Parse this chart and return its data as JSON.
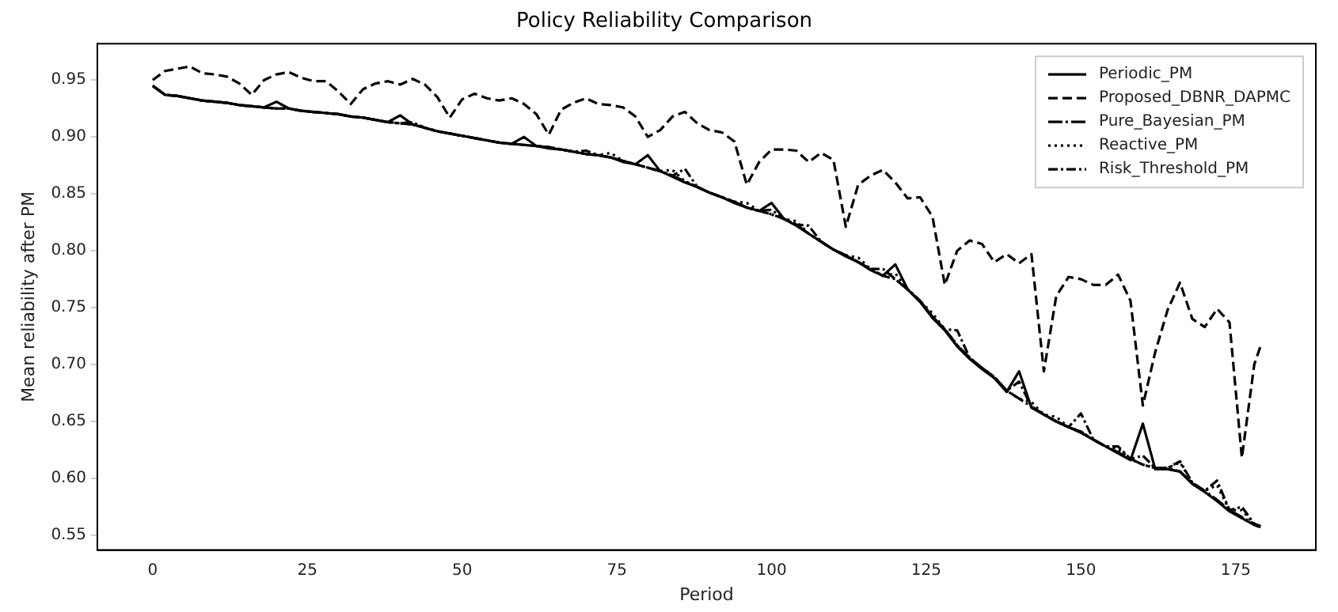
{
  "chart_data": {
    "type": "line",
    "title": "Policy Reliability Comparison",
    "xlabel": "Period",
    "ylabel": "Mean reliability after PM",
    "x": [
      0,
      2,
      4,
      6,
      8,
      10,
      12,
      14,
      16,
      18,
      20,
      22,
      24,
      26,
      28,
      30,
      32,
      34,
      36,
      38,
      40,
      42,
      44,
      46,
      48,
      50,
      52,
      54,
      56,
      58,
      60,
      62,
      64,
      66,
      68,
      70,
      72,
      74,
      76,
      78,
      80,
      82,
      84,
      86,
      88,
      90,
      92,
      94,
      96,
      98,
      100,
      102,
      104,
      106,
      108,
      110,
      112,
      114,
      116,
      118,
      120,
      122,
      124,
      126,
      128,
      130,
      132,
      134,
      136,
      138,
      140,
      142,
      144,
      146,
      148,
      150,
      152,
      154,
      156,
      158,
      160,
      162,
      164,
      166,
      168,
      170,
      172,
      174,
      176,
      178,
      179
    ],
    "series": [
      {
        "name": "Periodic_PM",
        "color": "#000000",
        "line_style": "solid",
        "values": [
          0.945,
          0.937,
          0.936,
          0.934,
          0.932,
          0.931,
          0.93,
          0.928,
          0.927,
          0.926,
          0.931,
          0.925,
          0.923,
          0.922,
          0.921,
          0.92,
          0.918,
          0.917,
          0.915,
          0.913,
          0.919,
          0.911,
          0.908,
          0.905,
          0.903,
          0.901,
          0.899,
          0.897,
          0.895,
          0.894,
          0.9,
          0.892,
          0.89,
          0.889,
          0.887,
          0.885,
          0.884,
          0.882,
          0.878,
          0.876,
          0.884,
          0.87,
          0.865,
          0.86,
          0.856,
          0.851,
          0.847,
          0.842,
          0.838,
          0.835,
          0.842,
          0.828,
          0.822,
          0.815,
          0.808,
          0.801,
          0.795,
          0.79,
          0.783,
          0.778,
          0.788,
          0.766,
          0.755,
          0.741,
          0.73,
          0.716,
          0.705,
          0.696,
          0.688,
          0.676,
          0.694,
          0.662,
          0.656,
          0.65,
          0.645,
          0.64,
          0.634,
          0.628,
          0.622,
          0.616,
          0.648,
          0.608,
          0.608,
          0.606,
          0.595,
          0.588,
          0.58,
          0.571,
          0.565,
          0.559,
          0.557
        ]
      },
      {
        "name": "Proposed_DBNR_DAPMC",
        "color": "#000000",
        "line_style": "dashed",
        "values": [
          0.95,
          0.958,
          0.96,
          0.962,
          0.956,
          0.955,
          0.953,
          0.947,
          0.937,
          0.95,
          0.955,
          0.957,
          0.952,
          0.949,
          0.949,
          0.94,
          0.929,
          0.942,
          0.947,
          0.949,
          0.946,
          0.951,
          0.946,
          0.935,
          0.917,
          0.933,
          0.938,
          0.934,
          0.932,
          0.934,
          0.929,
          0.92,
          0.902,
          0.924,
          0.93,
          0.934,
          0.929,
          0.928,
          0.926,
          0.918,
          0.9,
          0.906,
          0.918,
          0.922,
          0.912,
          0.906,
          0.904,
          0.896,
          0.858,
          0.878,
          0.889,
          0.889,
          0.888,
          0.878,
          0.886,
          0.88,
          0.821,
          0.858,
          0.866,
          0.871,
          0.86,
          0.846,
          0.847,
          0.83,
          0.77,
          0.8,
          0.809,
          0.806,
          0.79,
          0.797,
          0.789,
          0.797,
          0.694,
          0.76,
          0.777,
          0.775,
          0.77,
          0.77,
          0.779,
          0.756,
          0.664,
          0.711,
          0.748,
          0.772,
          0.74,
          0.733,
          0.749,
          0.737,
          0.618,
          0.7,
          0.716
        ]
      },
      {
        "name": "Pure_Bayesian_PM",
        "color": "#000000",
        "line_style": "longdashdot",
        "values": [
          0.945,
          0.937,
          0.936,
          0.934,
          0.932,
          0.931,
          0.93,
          0.928,
          0.927,
          0.926,
          0.925,
          0.925,
          0.923,
          0.922,
          0.921,
          0.92,
          0.918,
          0.917,
          0.915,
          0.913,
          0.912,
          0.911,
          0.908,
          0.905,
          0.903,
          0.901,
          0.899,
          0.897,
          0.895,
          0.894,
          0.893,
          0.892,
          0.891,
          0.889,
          0.887,
          0.885,
          0.884,
          0.882,
          0.879,
          0.876,
          0.873,
          0.87,
          0.866,
          0.861,
          0.856,
          0.851,
          0.847,
          0.843,
          0.838,
          0.835,
          0.832,
          0.828,
          0.823,
          0.815,
          0.808,
          0.801,
          0.796,
          0.79,
          0.784,
          0.778,
          0.775,
          0.766,
          0.756,
          0.742,
          0.731,
          0.717,
          0.706,
          0.697,
          0.689,
          0.677,
          0.67,
          0.663,
          0.656,
          0.65,
          0.645,
          0.641,
          0.634,
          0.628,
          0.623,
          0.617,
          0.612,
          0.609,
          0.609,
          0.606,
          0.596,
          0.589,
          0.581,
          0.572,
          0.566,
          0.56,
          0.558
        ]
      },
      {
        "name": "Reactive_PM",
        "color": "#000000",
        "line_style": "dotted",
        "values": [
          0.945,
          0.937,
          0.936,
          0.934,
          0.932,
          0.931,
          0.93,
          0.928,
          0.927,
          0.926,
          0.925,
          0.925,
          0.923,
          0.922,
          0.921,
          0.92,
          0.918,
          0.917,
          0.915,
          0.913,
          0.912,
          0.911,
          0.908,
          0.905,
          0.903,
          0.901,
          0.899,
          0.897,
          0.895,
          0.894,
          0.893,
          0.892,
          0.891,
          0.889,
          0.887,
          0.885,
          0.884,
          0.886,
          0.879,
          0.876,
          0.873,
          0.87,
          0.871,
          0.861,
          0.856,
          0.851,
          0.847,
          0.843,
          0.842,
          0.835,
          0.832,
          0.828,
          0.826,
          0.815,
          0.808,
          0.801,
          0.796,
          0.794,
          0.784,
          0.778,
          0.78,
          0.766,
          0.756,
          0.745,
          0.731,
          0.717,
          0.706,
          0.697,
          0.689,
          0.677,
          0.67,
          0.667,
          0.656,
          0.654,
          0.645,
          0.641,
          0.634,
          0.628,
          0.626,
          0.617,
          0.612,
          0.609,
          0.609,
          0.614,
          0.596,
          0.589,
          0.594,
          0.572,
          0.572,
          0.56,
          0.558
        ]
      },
      {
        "name": "Risk_Threshold_PM",
        "color": "#000000",
        "line_style": "dashdot",
        "values": [
          0.945,
          0.937,
          0.936,
          0.934,
          0.932,
          0.931,
          0.93,
          0.928,
          0.927,
          0.926,
          0.925,
          0.925,
          0.923,
          0.922,
          0.921,
          0.92,
          0.918,
          0.917,
          0.915,
          0.913,
          0.912,
          0.913,
          0.908,
          0.905,
          0.903,
          0.901,
          0.899,
          0.897,
          0.895,
          0.894,
          0.893,
          0.892,
          0.891,
          0.889,
          0.887,
          0.888,
          0.884,
          0.882,
          0.879,
          0.876,
          0.873,
          0.87,
          0.866,
          0.872,
          0.856,
          0.851,
          0.847,
          0.843,
          0.838,
          0.835,
          0.836,
          0.828,
          0.823,
          0.822,
          0.808,
          0.801,
          0.796,
          0.79,
          0.784,
          0.784,
          0.775,
          0.766,
          0.756,
          0.742,
          0.731,
          0.73,
          0.706,
          0.697,
          0.689,
          0.677,
          0.685,
          0.663,
          0.656,
          0.65,
          0.645,
          0.657,
          0.634,
          0.628,
          0.628,
          0.617,
          0.62,
          0.609,
          0.609,
          0.615,
          0.596,
          0.589,
          0.598,
          0.572,
          0.575,
          0.56,
          0.558
        ]
      }
    ],
    "xlim": [
      -8.95,
      187.95
    ],
    "xticks": [
      0,
      25,
      50,
      75,
      100,
      125,
      150,
      175
    ],
    "ylim": [
      0.537,
      0.982
    ],
    "yticks": [
      {
        "value": 0.55,
        "label": "0.55"
      },
      {
        "value": 0.6,
        "label": "0.60"
      },
      {
        "value": 0.65,
        "label": "0.65"
      },
      {
        "value": 0.7,
        "label": "0.70"
      },
      {
        "value": 0.75,
        "label": "0.75"
      },
      {
        "value": 0.8,
        "label": "0.80"
      },
      {
        "value": 0.85,
        "label": "0.85"
      },
      {
        "value": 0.9,
        "label": "0.90"
      },
      {
        "value": 0.95,
        "label": "0.95"
      }
    ],
    "grid": false,
    "legend": "top right",
    "marker": "none"
  }
}
